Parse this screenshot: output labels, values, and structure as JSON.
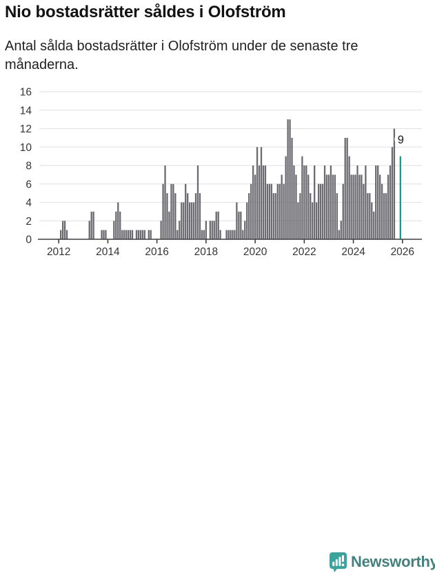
{
  "header": {
    "title": "Nio bostadsrätter såldes i Olofström",
    "subtitle": "Antal sålda bostadsrätter i Olofström under de senaste tre månaderna."
  },
  "chart_data": {
    "type": "bar",
    "title": "Nio bostadsrätter såldes i Olofström",
    "subtitle": "Antal sålda bostadsrätter i Olofström under de senaste tre månaderna.",
    "unit": "antal sålda bostadsrätter (rullande tre månader)",
    "frequency": "monthly",
    "x_start": "2011-04",
    "values": [
      0,
      0,
      0,
      0,
      0,
      0,
      0,
      0,
      0,
      0,
      1,
      2,
      2,
      1,
      0,
      0,
      0,
      0,
      0,
      0,
      0,
      0,
      0,
      0,
      2,
      3,
      3,
      0,
      0,
      0,
      1,
      1,
      1,
      0,
      0,
      0,
      2,
      3,
      4,
      3,
      1,
      1,
      1,
      1,
      1,
      1,
      0,
      1,
      1,
      1,
      1,
      1,
      0,
      1,
      1,
      0,
      0,
      0,
      0,
      2,
      6,
      8,
      5,
      3,
      6,
      6,
      5,
      1,
      2,
      4,
      4,
      6,
      5,
      4,
      4,
      4,
      5,
      8,
      5,
      1,
      1,
      2,
      0,
      2,
      2,
      2,
      3,
      3,
      1,
      0,
      0,
      1,
      1,
      1,
      1,
      1,
      4,
      3,
      3,
      1,
      2,
      4,
      5,
      6,
      8,
      7,
      10,
      8,
      10,
      8,
      8,
      6,
      6,
      6,
      5,
      5,
      6,
      6,
      7,
      6,
      9,
      13,
      13,
      11,
      8,
      7,
      4,
      5,
      9,
      8,
      8,
      7,
      5,
      4,
      8,
      4,
      6,
      6,
      6,
      8,
      7,
      7,
      8,
      7,
      7,
      5,
      1,
      2,
      6,
      11,
      11,
      9,
      7,
      7,
      7,
      8,
      7,
      7,
      6,
      8,
      5,
      5,
      4,
      3,
      8,
      8,
      7,
      6,
      5,
      5,
      7,
      8,
      10,
      12,
      0,
      0,
      9
    ],
    "last_value": 9,
    "annotation": {
      "label": "9",
      "value": 9
    },
    "highlight_last": true,
    "ylim": [
      0,
      16
    ],
    "y_ticks": [
      0,
      2,
      4,
      6,
      8,
      10,
      12,
      14,
      16
    ],
    "x_tick_years": [
      "2012",
      "2014",
      "2016",
      "2018",
      "2020",
      "2022",
      "2024",
      "2026"
    ],
    "grid": true,
    "legend": "none",
    "colors": {
      "bar": "#6a6a70",
      "highlight": "#169b91",
      "grid": "#e4e4e4",
      "axis": "#3f3f3f",
      "tick_text": "#333333",
      "annotation_text": "#1c1c1c",
      "annotation_bg": "#ffffff"
    }
  },
  "footer": {
    "brand": "Newsworthy",
    "logo_icon": "newsworthy-bubble-chart-icon",
    "brand_color": "#44807c",
    "icon_color": "#3ba39c"
  }
}
